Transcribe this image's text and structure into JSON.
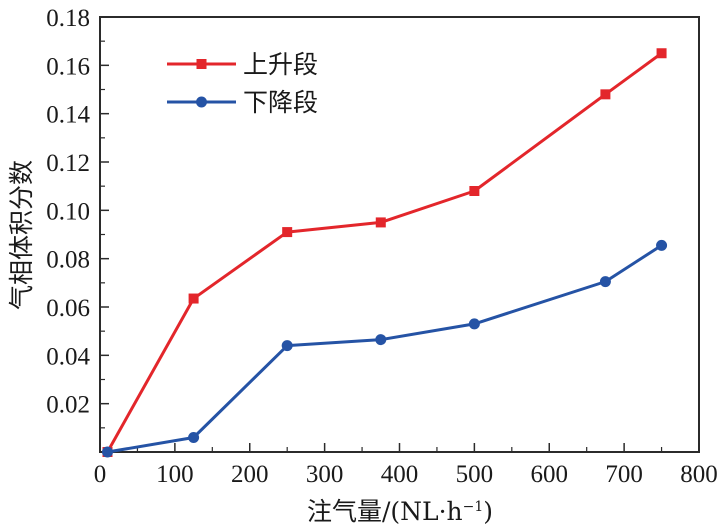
{
  "chart_data": {
    "type": "line",
    "title": "",
    "xlabel": "注气量/(NL·h⁻¹)",
    "xlabel_parts": {
      "main": "注气量/(NL·h",
      "sup": "−1",
      "close": ")"
    },
    "ylabel": "气相体积分数",
    "xlim": [
      0,
      800
    ],
    "ylim": [
      0,
      0.18
    ],
    "x_ticks": [
      "0",
      "100",
      "200",
      "300",
      "400",
      "500",
      "600",
      "700",
      "800"
    ],
    "x_tick_values": [
      0,
      100,
      200,
      300,
      400,
      500,
      600,
      700,
      800
    ],
    "y_ticks": [
      "0.02",
      "0.04",
      "0.06",
      "0.08",
      "0.10",
      "0.12",
      "0.14",
      "0.16",
      "0.18"
    ],
    "y_tick_values": [
      0.02,
      0.04,
      0.06,
      0.08,
      0.1,
      0.12,
      0.14,
      0.16,
      0.18
    ],
    "grid": false,
    "legend_position": "top-left",
    "series": [
      {
        "name": "上升段",
        "color": "#e3262b",
        "marker": "square",
        "x": [
          10,
          125,
          250,
          375,
          500,
          675,
          750
        ],
        "y": [
          0.0,
          0.0635,
          0.091,
          0.095,
          0.108,
          0.148,
          0.165
        ]
      },
      {
        "name": "下降段",
        "color": "#2553a5",
        "marker": "circle",
        "x": [
          10,
          125,
          250,
          375,
          500,
          675,
          750
        ],
        "y": [
          0.0,
          0.006,
          0.044,
          0.0465,
          0.053,
          0.0705,
          0.0855
        ]
      }
    ]
  }
}
